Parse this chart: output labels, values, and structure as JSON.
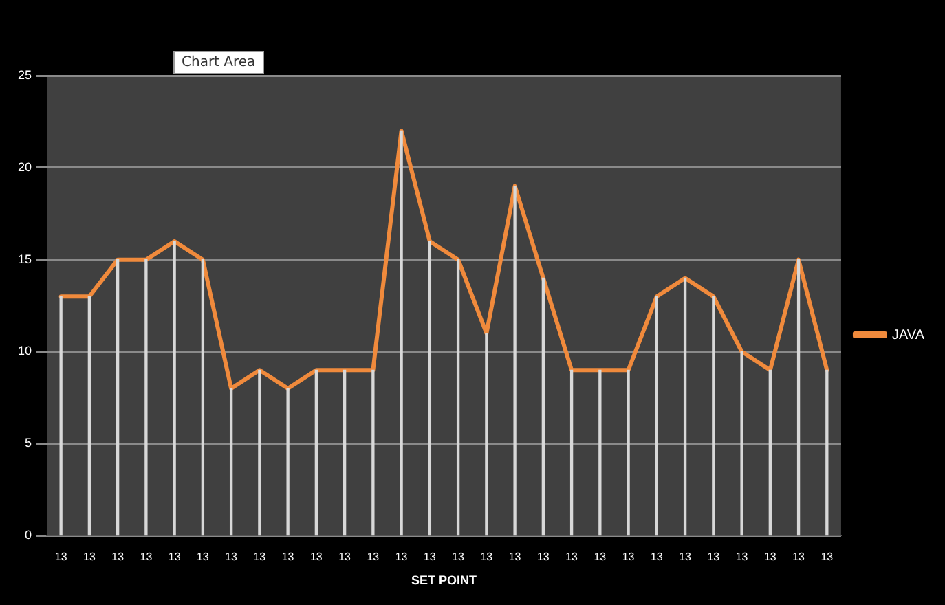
{
  "chart_data": {
    "type": "line",
    "xlabel": "SET POINT",
    "annotations": [
      "Chart Area"
    ],
    "categories": [
      "13",
      "13",
      "13",
      "13",
      "13",
      "13",
      "13",
      "13",
      "13",
      "13",
      "13",
      "13",
      "13",
      "13",
      "13",
      "13",
      "13",
      "13",
      "13",
      "13",
      "13",
      "13",
      "13",
      "13",
      "13",
      "13",
      "13",
      "13"
    ],
    "series": [
      {
        "type": "bar",
        "color": "#d8d8d8",
        "values": [
          13,
          13,
          15,
          15,
          16,
          15,
          8,
          9,
          8,
          9,
          9,
          9,
          22,
          16,
          15,
          11,
          19,
          14,
          9,
          9,
          9,
          13,
          14,
          13,
          10,
          9,
          15,
          9
        ]
      },
      {
        "name": "JAVA",
        "color": "#f08a3c",
        "values": [
          13,
          13,
          15,
          15,
          16,
          15,
          8,
          9,
          8,
          9,
          9,
          9,
          22,
          16,
          15,
          11,
          19,
          14,
          9,
          9,
          9,
          13,
          14,
          13,
          10,
          9,
          15,
          9
        ]
      }
    ],
    "ylim": [
      0,
      25
    ],
    "yticks": [
      0,
      5,
      10,
      15,
      20,
      25
    ],
    "grid": "y",
    "legend": "right",
    "marker": "none",
    "line_style": "solid"
  }
}
